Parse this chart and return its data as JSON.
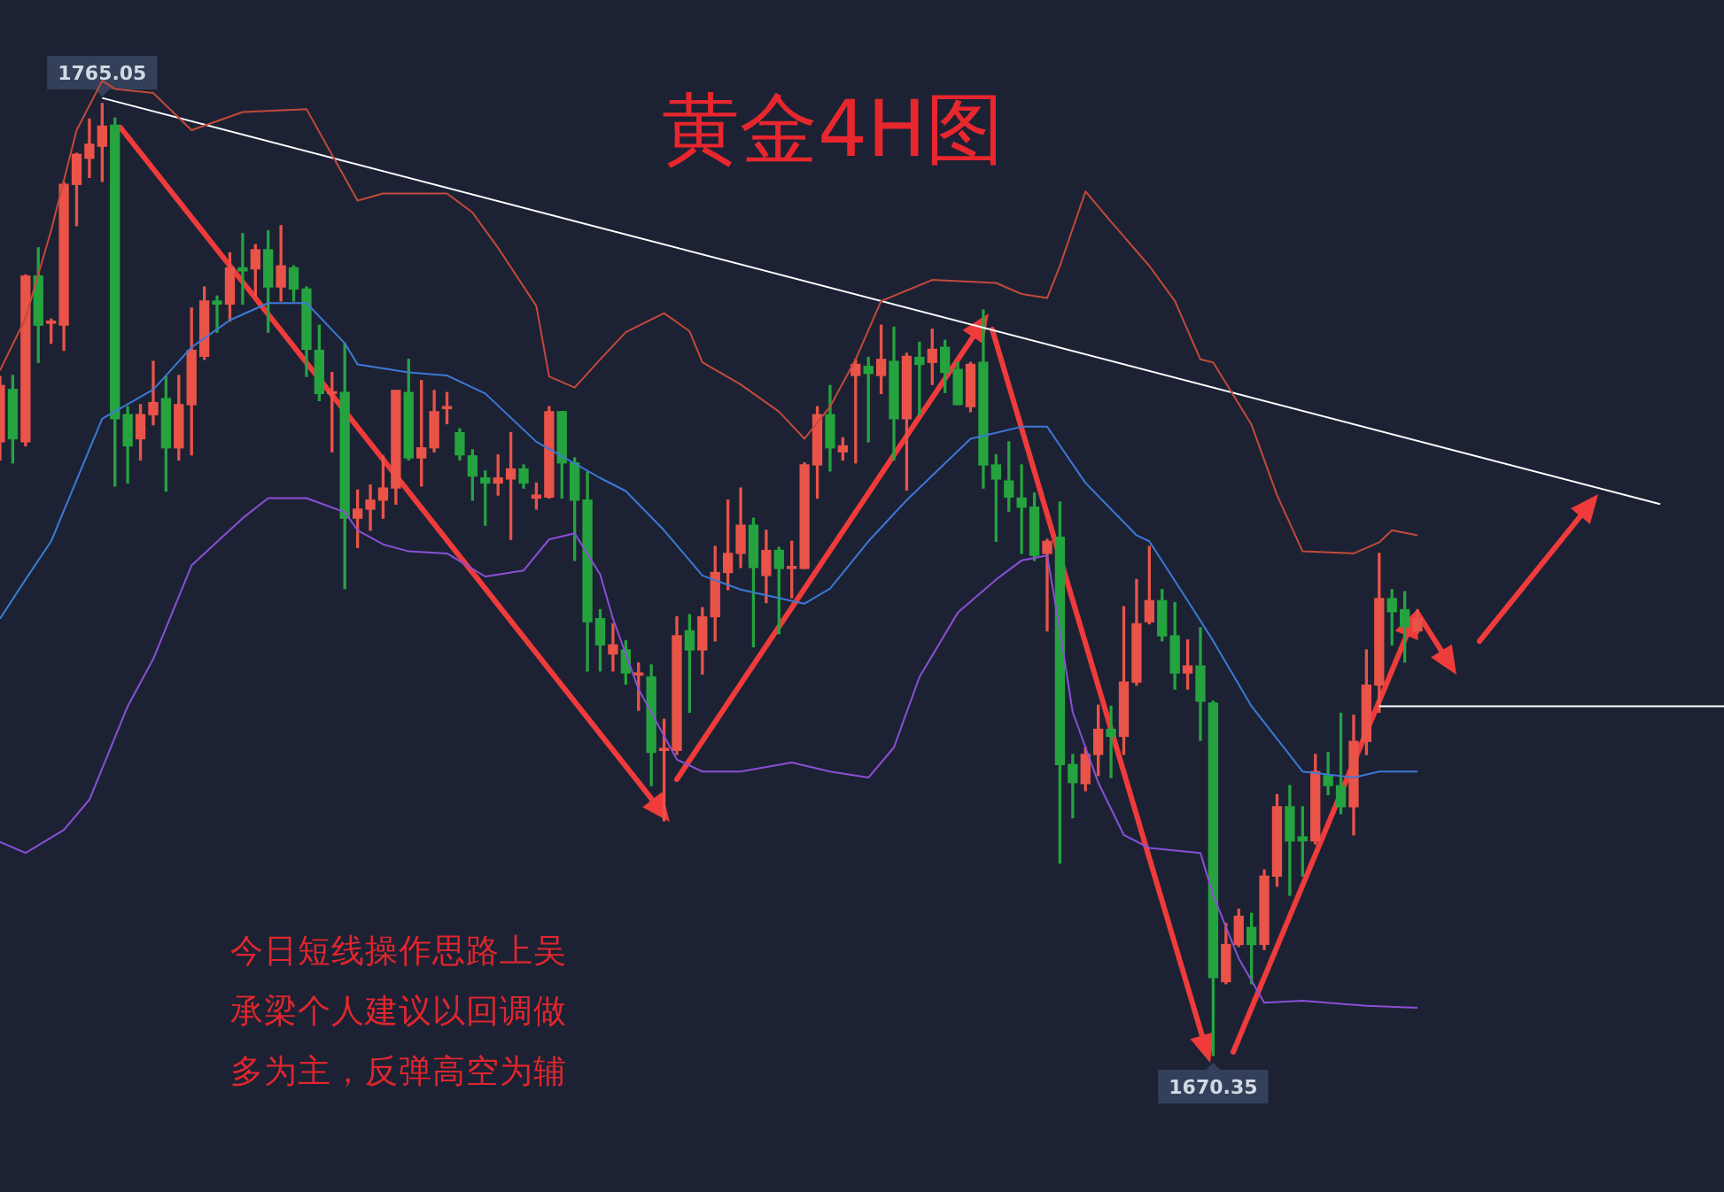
{
  "chart_data": {
    "type": "candlestick",
    "title": "黄金4H图",
    "tick_labels": false,
    "categories": [
      null,
      null,
      null,
      null,
      null,
      null,
      null,
      null,
      null,
      null,
      null,
      null,
      null,
      null,
      null,
      null,
      null,
      null,
      null,
      null,
      null,
      null,
      null,
      null,
      null,
      null,
      null,
      null,
      null,
      null,
      null,
      null,
      null,
      null,
      null,
      null,
      null,
      null,
      null,
      null,
      null,
      null,
      null,
      null,
      null,
      null,
      null,
      null,
      null,
      null,
      null,
      null,
      null,
      null,
      null,
      null,
      null,
      null,
      null,
      null,
      null,
      null,
      null,
      null,
      null,
      null,
      null,
      null,
      null,
      null,
      null,
      null,
      null,
      null,
      null,
      null,
      null,
      null,
      null,
      null,
      null,
      null,
      null,
      null,
      null,
      null,
      null,
      null,
      null,
      null,
      null,
      null,
      null,
      null,
      null,
      null,
      null,
      null,
      null,
      null,
      null,
      null,
      null,
      null,
      null,
      null,
      null,
      null,
      null,
      null,
      null,
      null,
      null,
      null,
      null,
      null,
      null,
      null,
      null,
      null,
      null,
      null,
      null,
      null,
      null,
      null,
      null,
      null,
      null,
      null,
      null,
      null,
      null,
      null,
      null,
      null
    ],
    "ohlc": [
      [
        1731.4,
        1737.9,
        1729.6,
        1737.0
      ],
      [
        1736.6,
        1738.0,
        1729.3,
        1731.7
      ],
      [
        1731.4,
        1748.0,
        1731.0,
        1747.9
      ],
      [
        1747.9,
        1750.7,
        1739.3,
        1743.0
      ],
      [
        1743.2,
        1743.6,
        1741.2,
        1743.4
      ],
      [
        1743.0,
        1757.2,
        1740.5,
        1757.0
      ],
      [
        1757.0,
        1760.1,
        1752.9,
        1760.0
      ],
      [
        1759.6,
        1763.5,
        1757.7,
        1761.0
      ],
      [
        1760.8,
        1765.05,
        1757.3,
        1762.8
      ],
      [
        1762.9,
        1763.6,
        1727.0,
        1733.7
      ],
      [
        1734.1,
        1734.9,
        1727.3,
        1731.0
      ],
      [
        1731.7,
        1735.1,
        1729.6,
        1734.1
      ],
      [
        1734.1,
        1739.4,
        1733.1,
        1735.3
      ],
      [
        1735.7,
        1737.9,
        1726.5,
        1730.8
      ],
      [
        1730.8,
        1738.0,
        1729.6,
        1735.1
      ],
      [
        1735.1,
        1744.7,
        1730.1,
        1740.5
      ],
      [
        1739.9,
        1746.8,
        1739.6,
        1745.4
      ],
      [
        1745.4,
        1745.9,
        1742.3,
        1745.1
      ],
      [
        1745.1,
        1750.2,
        1743.4,
        1748.7
      ],
      [
        1748.7,
        1752.1,
        1745.1,
        1748.4
      ],
      [
        1748.6,
        1751.0,
        1745.9,
        1750.5
      ],
      [
        1750.5,
        1752.4,
        1742.3,
        1746.8
      ],
      [
        1746.8,
        1752.9,
        1745.4,
        1748.9
      ],
      [
        1748.7,
        1748.9,
        1745.4,
        1746.6
      ],
      [
        1746.6,
        1746.8,
        1737.9,
        1740.6
      ],
      [
        1740.5,
        1743.0,
        1735.5,
        1736.2
      ],
      [
        1736.2,
        1738.3,
        1730.4,
        1736.3
      ],
      [
        1736.3,
        1741.2,
        1716.8,
        1723.8
      ],
      [
        1723.8,
        1726.6,
        1720.9,
        1724.7
      ],
      [
        1724.7,
        1727.1,
        1722.6,
        1725.6
      ],
      [
        1725.6,
        1730.0,
        1723.8,
        1726.8
      ],
      [
        1726.8,
        1736.5,
        1725.2,
        1736.5
      ],
      [
        1736.3,
        1739.6,
        1729.6,
        1729.8
      ],
      [
        1729.8,
        1737.5,
        1727.0,
        1730.8
      ],
      [
        1730.8,
        1736.5,
        1730.4,
        1734.4
      ],
      [
        1734.7,
        1736.3,
        1733.2,
        1734.9
      ],
      [
        1732.3,
        1732.7,
        1729.6,
        1730.1
      ],
      [
        1730.0,
        1730.6,
        1725.6,
        1728.0
      ],
      [
        1727.8,
        1728.5,
        1723.1,
        1727.3
      ],
      [
        1727.3,
        1730.1,
        1726.1,
        1727.8
      ],
      [
        1727.7,
        1732.3,
        1721.7,
        1728.7
      ],
      [
        1728.7,
        1729.1,
        1726.8,
        1727.3
      ],
      [
        1725.8,
        1727.3,
        1724.7,
        1726.1
      ],
      [
        1725.9,
        1734.9,
        1725.8,
        1734.4
      ],
      [
        1734.4,
        1734.4,
        1725.8,
        1729.3
      ],
      [
        1729.3,
        1729.8,
        1719.6,
        1725.6
      ],
      [
        1725.6,
        1728.4,
        1708.6,
        1713.5
      ],
      [
        1713.8,
        1714.7,
        1708.6,
        1711.2
      ],
      [
        1710.3,
        1713.3,
        1708.6,
        1711.2
      ],
      [
        1710.7,
        1711.6,
        1707.3,
        1708.4
      ],
      [
        1708.2,
        1709.4,
        1704.7,
        1708.4
      ],
      [
        1708.0,
        1709.2,
        1697.2,
        1700.5
      ],
      [
        1700.7,
        1703.8,
        1693.7,
        1700.9
      ],
      [
        1700.7,
        1714.0,
        1700.3,
        1712.1
      ],
      [
        1712.6,
        1714.2,
        1704.5,
        1710.7
      ],
      [
        1710.7,
        1714.9,
        1708.3,
        1714.0
      ],
      [
        1714.0,
        1721.0,
        1711.6,
        1718.4
      ],
      [
        1718.4,
        1725.6,
        1716.7,
        1720.3
      ],
      [
        1720.3,
        1726.8,
        1718.9,
        1723.1
      ],
      [
        1723.1,
        1723.8,
        1711.0,
        1718.9
      ],
      [
        1718.1,
        1722.6,
        1715.4,
        1720.6
      ],
      [
        1720.6,
        1720.9,
        1712.3,
        1718.8
      ],
      [
        1718.8,
        1721.5,
        1715.9,
        1719.0
      ],
      [
        1718.8,
        1729.3,
        1718.8,
        1729.1
      ],
      [
        1729.1,
        1734.9,
        1725.8,
        1734.1
      ],
      [
        1734.1,
        1737.0,
        1728.5,
        1730.8
      ],
      [
        1730.4,
        1731.8,
        1729.6,
        1731.0
      ],
      [
        1738.0,
        1739.6,
        1729.3,
        1739.1
      ],
      [
        1738.9,
        1739.8,
        1731.4,
        1738.2
      ],
      [
        1738.0,
        1743.0,
        1736.2,
        1739.6
      ],
      [
        1739.4,
        1742.8,
        1729.6,
        1733.7
      ],
      [
        1733.7,
        1740.2,
        1726.6,
        1739.9
      ],
      [
        1739.8,
        1741.3,
        1734.1,
        1739.1
      ],
      [
        1739.3,
        1742.6,
        1737.1,
        1740.6
      ],
      [
        1740.8,
        1741.5,
        1736.3,
        1738.3
      ],
      [
        1738.6,
        1739.3,
        1735.1,
        1735.1
      ],
      [
        1734.9,
        1739.3,
        1734.4,
        1739.1
      ],
      [
        1739.3,
        1744.5,
        1726.8,
        1729.1
      ],
      [
        1729.1,
        1730.1,
        1721.5,
        1727.7
      ],
      [
        1727.5,
        1731.4,
        1724.5,
        1725.9
      ],
      [
        1725.8,
        1729.1,
        1720.3,
        1724.9
      ],
      [
        1724.9,
        1726.3,
        1719.6,
        1720.1
      ],
      [
        1720.3,
        1721.7,
        1712.6,
        1721.5
      ],
      [
        1721.9,
        1725.4,
        1689.5,
        1699.3
      ],
      [
        1699.3,
        1700.3,
        1694.0,
        1697.5
      ],
      [
        1697.4,
        1701.0,
        1696.7,
        1700.3
      ],
      [
        1700.3,
        1705.2,
        1698.2,
        1702.8
      ],
      [
        1702.8,
        1705.1,
        1698.0,
        1702.1
      ],
      [
        1702.1,
        1715.0,
        1700.3,
        1707.5
      ],
      [
        1707.5,
        1717.7,
        1707.2,
        1713.3
      ],
      [
        1713.5,
        1721.0,
        1713.3,
        1715.6
      ],
      [
        1715.6,
        1716.7,
        1711.6,
        1712.1
      ],
      [
        1712.1,
        1715.4,
        1706.8,
        1708.4
      ],
      [
        1708.4,
        1711.7,
        1706.8,
        1709.1
      ],
      [
        1709.1,
        1712.9,
        1701.7,
        1705.6
      ],
      [
        1705.4,
        1705.6,
        1670.35,
        1678.1
      ],
      [
        1677.7,
        1683.5,
        1677.5,
        1681.4
      ],
      [
        1681.4,
        1684.9,
        1681.2,
        1684.2
      ],
      [
        1683.1,
        1684.5,
        1677.5,
        1681.4
      ],
      [
        1681.4,
        1688.8,
        1680.9,
        1688.2
      ],
      [
        1688.2,
        1696.3,
        1687.2,
        1695.1
      ],
      [
        1695.1,
        1697.2,
        1686.3,
        1691.7
      ],
      [
        1692.1,
        1695.1,
        1688.2,
        1691.7
      ],
      [
        1691.7,
        1700.3,
        1691.4,
        1698.6
      ],
      [
        1698.2,
        1700.5,
        1696.3,
        1697.2
      ],
      [
        1697.2,
        1704.4,
        1694.4,
        1695.1
      ],
      [
        1695.1,
        1704.2,
        1692.3,
        1701.6
      ],
      [
        1701.6,
        1710.7,
        1700.3,
        1707.2
      ],
      [
        1707.2,
        1720.3,
        1704.5,
        1715.8
      ],
      [
        1715.8,
        1716.7,
        1711.2,
        1714.5
      ],
      [
        1714.7,
        1716.5,
        1709.5,
        1713.0
      ],
      [
        1712.6,
        1714.7,
        1712.4,
        1713.8
      ],
      null,
      null,
      null,
      null,
      null,
      null,
      null,
      null,
      null,
      null,
      null,
      null,
      null,
      null,
      null,
      null,
      null,
      null,
      null,
      null,
      null,
      null,
      null,
      null
    ],
    "series": [
      {
        "type": "line",
        "color": "#c4493a",
        "values": [
          1738.5,
          null,
          1743.7,
          null,
          1752.4,
          null,
          1762.4,
          null,
          1767.3,
          1766.5,
          null,
          null,
          1766.1,
          null,
          null,
          1762.4,
          null,
          null,
          null,
          1764.2,
          null,
          null,
          null,
          null,
          1764.5,
          null,
          null,
          null,
          1755.4,
          null,
          1756.1,
          null,
          null,
          null,
          null,
          1756.1,
          null,
          1754.2,
          null,
          1750.7,
          null,
          null,
          1744.9,
          1737.9,
          null,
          1736.8,
          null,
          1739.6,
          null,
          1742.3,
          null,
          null,
          1744.2,
          null,
          1742.4,
          1739.3,
          null,
          null,
          1737.1,
          null,
          null,
          1734.4,
          null,
          1731.7,
          null,
          1734.9,
          null,
          1739.6,
          null,
          1745.4,
          null,
          null,
          null,
          1747.5,
          null,
          null,
          null,
          null,
          1747.2,
          null,
          1746.1,
          null,
          1745.7,
          1748.9,
          null,
          1756.3,
          null,
          1753.3,
          null,
          null,
          1748.9,
          null,
          1745.4,
          null,
          1739.6,
          1739.3,
          null,
          null,
          1733.1,
          null,
          1726.1,
          null,
          1720.5,
          null,
          null,
          null,
          1720.3,
          null,
          1721.4,
          1722.6,
          null,
          1722.1,
          null,
          null,
          null,
          null,
          null,
          null,
          null,
          null,
          null,
          null,
          null,
          null,
          null,
          null,
          null,
          null,
          null,
          null,
          null,
          null,
          null,
          null,
          null,
          null
        ]
      },
      {
        "type": "line",
        "color": "#3d78d6",
        "values": [
          1713.8,
          null,
          1717.7,
          null,
          1721.5,
          null,
          null,
          null,
          1733.7,
          null,
          null,
          null,
          1736.6,
          null,
          null,
          1740.8,
          null,
          null,
          1743.5,
          null,
          null,
          1745.2,
          null,
          null,
          1745.2,
          null,
          null,
          1741.2,
          1739.1,
          null,
          null,
          null,
          1738.3,
          null,
          null,
          1738.0,
          null,
          null,
          1736.2,
          null,
          null,
          null,
          1731.4,
          null,
          null,
          null,
          null,
          1727.8,
          null,
          1726.5,
          null,
          null,
          1722.6,
          null,
          null,
          1718.1,
          null,
          null,
          1716.7,
          null,
          null,
          null,
          null,
          1715.3,
          null,
          1716.8,
          null,
          null,
          1721.5,
          null,
          null,
          1725.6,
          null,
          null,
          null,
          null,
          1731.7,
          null,
          null,
          null,
          1732.9,
          null,
          1732.9,
          null,
          null,
          1727.3,
          null,
          null,
          null,
          1722.1,
          1721.5,
          null,
          null,
          1715.6,
          null,
          1711.6,
          null,
          null,
          1705.1,
          null,
          null,
          null,
          1698.6,
          null,
          null,
          null,
          1698.0,
          null,
          1698.6,
          null,
          null,
          1698.6,
          null,
          null,
          null,
          null,
          null,
          null,
          null,
          null,
          null,
          null,
          null,
          null,
          null,
          null,
          null,
          null,
          null,
          null,
          null,
          null,
          null,
          null,
          null,
          null
        ]
      },
      {
        "type": "line",
        "color": "#8b4fd6",
        "values": [
          1691.6,
          null,
          1690.5,
          null,
          null,
          1692.8,
          null,
          1695.8,
          null,
          null,
          1705.1,
          null,
          1709.8,
          null,
          null,
          1719.1,
          null,
          null,
          null,
          1723.8,
          null,
          1725.8,
          null,
          null,
          1725.8,
          null,
          null,
          1724.4,
          1722.6,
          null,
          1721.2,
          null,
          1720.5,
          null,
          null,
          1720.3,
          null,
          null,
          1718.0,
          null,
          null,
          1718.6,
          null,
          1721.7,
          null,
          1722.3,
          null,
          1718.2,
          1713.8,
          null,
          1706.8,
          null,
          null,
          1699.8,
          null,
          1698.6,
          null,
          null,
          1698.6,
          null,
          null,
          null,
          1699.5,
          null,
          null,
          1698.6,
          null,
          null,
          1698.0,
          null,
          1701.0,
          null,
          1708.0,
          null,
          null,
          1714.4,
          null,
          null,
          1717.7,
          null,
          1719.6,
          null,
          1720.1,
          1712.6,
          1704.5,
          null,
          1697.5,
          null,
          1692.3,
          null,
          1691.0,
          null,
          null,
          null,
          1690.5,
          1686.3,
          null,
          1680.0,
          null,
          1675.6,
          null,
          null,
          1675.8,
          null,
          null,
          null,
          null,
          1675.3,
          null,
          null,
          null,
          1675.1,
          null,
          null,
          null,
          null,
          null,
          null,
          null,
          null,
          null,
          null,
          null,
          null,
          null,
          null,
          null,
          null,
          null,
          null,
          null,
          null,
          null,
          null,
          null,
          null
        ]
      },
      {
        "type": "line",
        "color": "#ffffff",
        "values": [
          null,
          null,
          null,
          null,
          null,
          null,
          null,
          null,
          1765.6,
          null,
          null,
          null,
          null,
          null,
          null,
          null,
          null,
          null,
          null,
          null,
          null,
          null,
          null,
          null,
          null,
          null,
          null,
          null,
          null,
          null,
          null,
          null,
          null,
          null,
          null,
          null,
          null,
          null,
          null,
          null,
          null,
          null,
          null,
          null,
          null,
          null,
          null,
          null,
          null,
          null,
          null,
          null,
          null,
          null,
          null,
          null,
          null,
          null,
          null,
          null,
          null,
          null,
          null,
          null,
          null,
          null,
          null,
          null,
          null,
          null,
          null,
          null,
          null,
          null,
          null,
          null,
          null,
          null,
          null,
          null,
          null,
          null,
          null,
          null,
          null,
          null,
          null,
          null,
          null,
          null,
          null,
          null,
          null,
          null,
          null,
          null,
          null,
          null,
          null,
          null,
          null,
          null,
          null,
          null,
          null,
          null,
          null,
          null,
          null,
          null,
          null,
          null,
          null,
          null,
          null,
          null,
          null,
          null,
          null,
          null,
          null,
          null,
          null,
          null,
          null,
          null,
          null,
          null,
          null,
          null,
          1725.2,
          null,
          null,
          null,
          null,
          null
        ]
      },
      {
        "type": "line",
        "color": "#ffffff",
        "values": [
          null,
          null,
          null,
          null,
          null,
          null,
          null,
          null,
          null,
          null,
          null,
          null,
          null,
          null,
          null,
          null,
          null,
          null,
          null,
          null,
          null,
          null,
          null,
          null,
          null,
          null,
          null,
          null,
          null,
          null,
          null,
          null,
          null,
          null,
          null,
          null,
          null,
          null,
          null,
          null,
          null,
          null,
          null,
          null,
          null,
          null,
          null,
          null,
          null,
          null,
          null,
          null,
          null,
          null,
          null,
          null,
          null,
          null,
          null,
          null,
          null,
          null,
          null,
          null,
          null,
          null,
          null,
          null,
          null,
          null,
          null,
          null,
          null,
          null,
          null,
          null,
          null,
          null,
          null,
          null,
          null,
          null,
          null,
          null,
          null,
          null,
          null,
          null,
          null,
          null,
          null,
          null,
          null,
          null,
          null,
          null,
          null,
          null,
          null,
          null,
          null,
          null,
          null,
          null,
          null,
          null,
          null,
          null,
          1705.1,
          1705.1,
          1705.1,
          1705.1,
          1705.1,
          1705.1,
          1705.1,
          1705.1,
          1705.1,
          1705.1,
          1705.1,
          1705.1,
          1705.1,
          1705.1,
          1705.1,
          1705.1,
          1705.1,
          1705.1,
          1705.1,
          1705.1,
          1705.1,
          1705.1,
          1705.1,
          1705.1,
          1705.1,
          1705.1,
          1705.1,
          1705.1
        ]
      }
    ],
    "annotations": [
      "今日短线操作思路上吴承梁个人建议以回调做多为主，反弹高空为辅",
      {
        "text": "1765.05",
        "y": 1765.05
      },
      {
        "text": "1670.35",
        "y": 1670.35
      }
    ]
  }
}
